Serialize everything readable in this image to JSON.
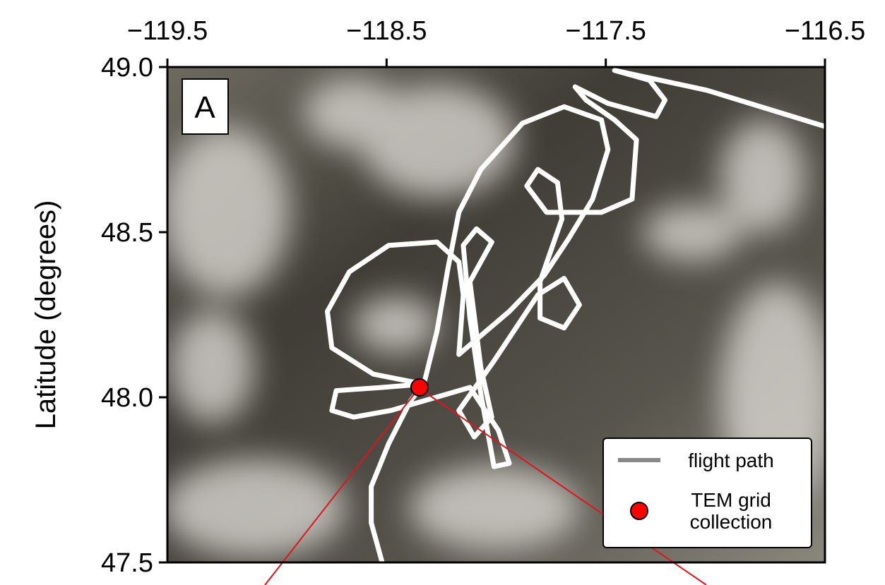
{
  "chart_data": {
    "type": "line",
    "panel_label": "A",
    "ylabel": "Latitude (degrees)",
    "xlim": [
      -119.5,
      -116.5
    ],
    "ylim": [
      47.5,
      49.0
    ],
    "xticks": [
      {
        "value": -119.5,
        "label": "−119.5"
      },
      {
        "value": -118.5,
        "label": "−118.5"
      },
      {
        "value": -117.5,
        "label": "−117.5"
      },
      {
        "value": -116.5,
        "label": "−116.5"
      }
    ],
    "yticks": [
      47.5,
      {
        "value": 48.0,
        "label": "48.0"
      },
      48.5,
      {
        "value": 49.0,
        "label": "49.0"
      }
    ],
    "series": [
      {
        "name": "flight path",
        "color": "#ffffff",
        "legend_color": "#888888",
        "x": [
          -118.52,
          -118.57,
          -118.57,
          -118.49,
          -118.39,
          -118.33,
          -118.56,
          -118.75,
          -118.77,
          -118.67,
          -118.49,
          -118.27,
          -118.17,
          -118.15,
          -118.17,
          -117.94,
          -117.78,
          -117.67,
          -117.56,
          -117.49,
          -117.52,
          -117.69,
          -117.88,
          -118.07,
          -118.17,
          -118.22,
          -118.27,
          -118.33,
          -118.52,
          -118.73,
          -118.75,
          -118.65,
          -118.48,
          -118.12,
          -117.99,
          -117.94,
          -118.01,
          -118.07,
          -118.12,
          -118.15,
          -118.09,
          -118.02,
          -118.07,
          -118.12,
          -118.07,
          -118.02,
          -118.1,
          -118.17,
          -118.01,
          -117.81,
          -117.69,
          -117.62,
          -117.69,
          -117.8,
          -117.8,
          -117.7,
          -117.72,
          -117.81,
          -117.86,
          -117.77,
          -117.52,
          -117.38,
          -117.36,
          -117.46,
          -117.59,
          -117.64,
          -117.49,
          -117.27,
          -117.23,
          -117.3,
          -117.46,
          -117.04,
          -116.5
        ],
        "values": [
          47.5,
          47.62,
          47.73,
          47.86,
          47.99,
          48.04,
          48.07,
          48.15,
          48.26,
          48.38,
          48.46,
          48.47,
          48.41,
          48.31,
          48.13,
          48.26,
          48.37,
          48.48,
          48.6,
          48.75,
          48.84,
          48.88,
          48.83,
          48.69,
          48.56,
          48.39,
          48.2,
          48.04,
          48.03,
          48.02,
          47.96,
          47.94,
          47.96,
          48.03,
          47.9,
          47.8,
          47.79,
          48.01,
          48.24,
          48.46,
          48.51,
          48.47,
          48.41,
          48.35,
          48.09,
          47.94,
          47.88,
          47.96,
          48.11,
          48.31,
          48.36,
          48.28,
          48.21,
          48.24,
          48.35,
          48.54,
          48.65,
          48.69,
          48.64,
          48.56,
          48.56,
          48.6,
          48.78,
          48.84,
          48.9,
          48.94,
          48.89,
          48.85,
          48.9,
          48.96,
          48.99,
          48.93,
          48.82
        ]
      },
      {
        "name": "TEM grid collection",
        "type": "scatter",
        "color": "#ff0000",
        "x": [
          -118.35
        ],
        "values": [
          48.03
        ]
      }
    ]
  }
}
